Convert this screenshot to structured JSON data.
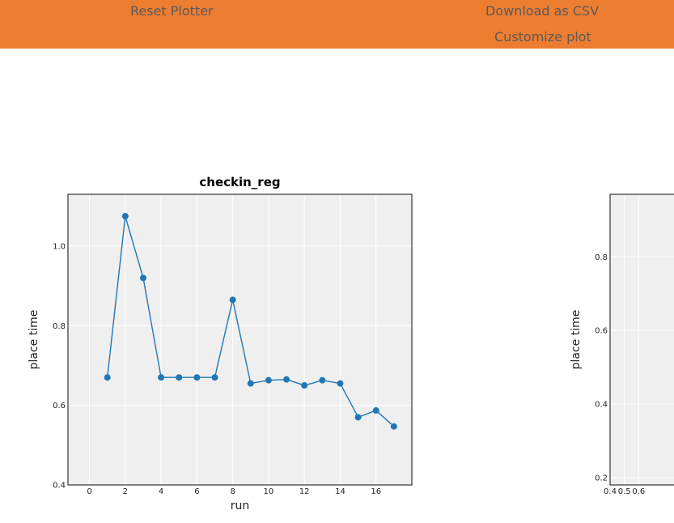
{
  "toolbar": {
    "reset_label": "Reset Plotter",
    "download_label": "Download as CSV",
    "customize_label": "Customize plot"
  },
  "colors": {
    "toolbar_bg": "#ed7d31",
    "plot_bg": "#efefef",
    "series": "#1f77b4"
  },
  "chart_data": [
    {
      "type": "line",
      "title": "checkin_reg",
      "xlabel": "run",
      "ylabel": "place time",
      "xlim": [
        -1.2,
        18.0
      ],
      "ylim": [
        0.4,
        1.13
      ],
      "xticks": [
        0,
        2,
        4,
        6,
        8,
        10,
        12,
        14,
        16
      ],
      "yticks": [
        0.4,
        0.6,
        0.8,
        1.0
      ],
      "ytick_labels": [
        "0.4",
        "0.6",
        "0.8",
        "1.0"
      ],
      "grid": true,
      "series": [
        {
          "x": [
            1,
            2,
            3,
            4,
            5,
            6,
            7,
            8,
            9,
            10,
            11,
            12,
            13,
            14,
            15,
            16,
            17
          ],
          "y": [
            0.67,
            1.075,
            0.92,
            0.67,
            0.67,
            0.67,
            0.67,
            0.865,
            0.655,
            0.663,
            0.665,
            0.65,
            0.663,
            0.655,
            0.57,
            0.587,
            0.547
          ]
        }
      ]
    },
    {
      "type": "scatter",
      "title": "",
      "xlabel": "",
      "ylabel": "place time",
      "xlim": [
        0.4,
        1.0
      ],
      "ylim": [
        0.18,
        0.97
      ],
      "xticks": [
        0.4,
        0.5,
        0.6
      ],
      "xtick_labels": [
        "0.4",
        "0.5",
        "0.6"
      ],
      "yticks": [
        0.2,
        0.4,
        0.6,
        0.8
      ],
      "ytick_labels": [
        "0.2",
        "0.4",
        "0.6",
        "0.8"
      ],
      "grid": true,
      "series": []
    }
  ]
}
